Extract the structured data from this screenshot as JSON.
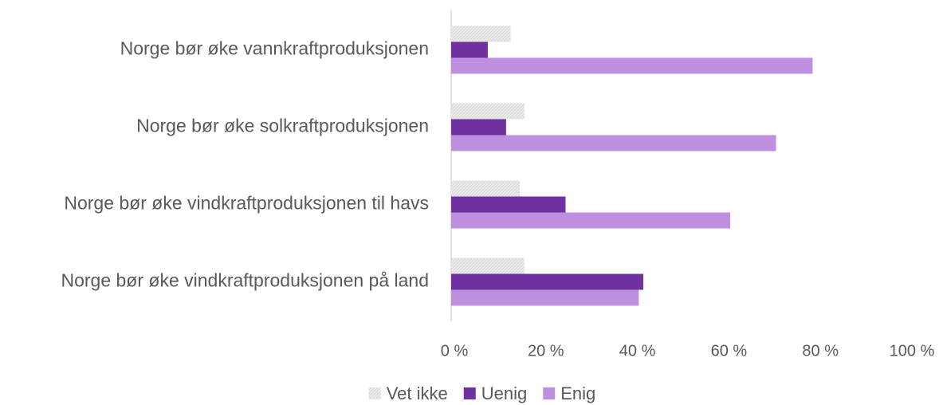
{
  "chart_data": {
    "type": "hbar",
    "categories": [
      "Norge bør øke vannkraftproduksjonen",
      "Norge bør øke solkraftproduksjonen",
      "Norge bør øke vindkraftproduksjonen til havs",
      "Norge bør øke vindkraftproduksjonen på land"
    ],
    "series": [
      {
        "name": "Vet ikke",
        "color": "#e6e6e6",
        "values": [
          13,
          16,
          15,
          16
        ]
      },
      {
        "name": "Uenig",
        "color": "#7030a0",
        "values": [
          8,
          12,
          25,
          42
        ]
      },
      {
        "name": "Enig",
        "color": "#bf8fdf",
        "values": [
          79,
          71,
          61,
          41
        ]
      }
    ],
    "xlim": [
      0,
      100
    ],
    "xticks": [
      {
        "value": 0,
        "label": "0 %"
      },
      {
        "value": 20,
        "label": "20 %"
      },
      {
        "value": 40,
        "label": "40 %"
      },
      {
        "value": 60,
        "label": "60 %"
      },
      {
        "value": 80,
        "label": "80 %"
      },
      {
        "value": 100,
        "label": "100 %"
      }
    ],
    "grid": false,
    "legend": "bottom"
  }
}
